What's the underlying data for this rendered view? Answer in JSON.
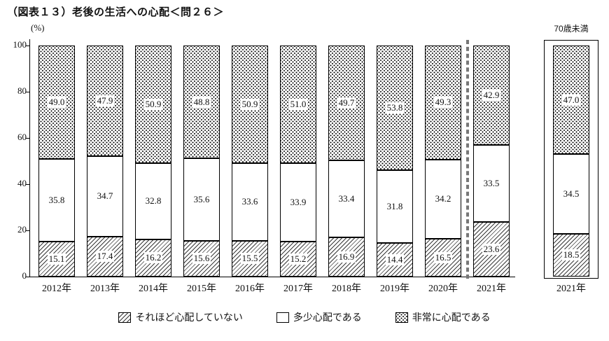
{
  "title": "（図表１３）老後の生活への心配＜問２６＞",
  "chart_data": {
    "type": "bar",
    "subtype": "stacked-100-percent",
    "title": "（図表１３）老後の生活への心配＜問２６＞",
    "y_unit": "(%)",
    "ylim": [
      0,
      100
    ],
    "yticks": [
      0,
      20,
      40,
      60,
      80,
      100
    ],
    "grid": false,
    "legend_position": "bottom",
    "categories": [
      "2012年",
      "2013年",
      "2014年",
      "2015年",
      "2016年",
      "2017年",
      "2018年",
      "2019年",
      "2020年",
      "2021年"
    ],
    "series": [
      {
        "name": "それほど心配していない",
        "pattern": "hatch",
        "values": [
          15.1,
          17.4,
          16.2,
          15.6,
          15.5,
          15.2,
          16.9,
          14.4,
          16.5,
          23.6
        ]
      },
      {
        "name": "多少心配である",
        "pattern": "plain",
        "values": [
          35.8,
          34.7,
          32.8,
          35.6,
          33.6,
          33.9,
          33.4,
          31.8,
          34.2,
          33.5
        ]
      },
      {
        "name": "非常に心配である",
        "pattern": "dots",
        "values": [
          49.0,
          47.9,
          50.9,
          48.8,
          50.9,
          51.0,
          49.7,
          53.8,
          49.3,
          42.9
        ]
      }
    ],
    "separator_between": [
      "2020年",
      "2021年"
    ],
    "annex": {
      "header": "70歳未満",
      "category": "2021年",
      "values": [
        18.5,
        34.5,
        47.0
      ]
    }
  }
}
